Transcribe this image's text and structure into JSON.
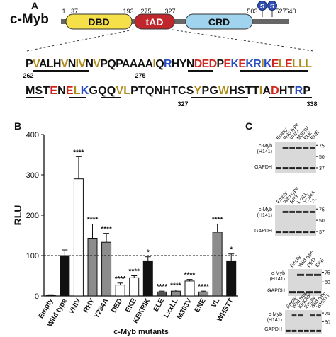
{
  "panel_a": {
    "label": "A",
    "protein": "c-Myb",
    "domains": [
      {
        "text": "DBD",
        "color": "#f5e04a"
      },
      {
        "text": "tAD",
        "color": "#c0272d"
      },
      {
        "text": "CRD",
        "color": "#9fd3ee"
      }
    ],
    "phospho": [
      "S",
      "S"
    ],
    "positions": [
      1,
      37,
      193,
      275,
      327,
      503,
      527,
      640
    ],
    "sequence": {
      "lines": [
        {
          "segments": [
            {
              "text": "P",
              "color": "#111111"
            },
            {
              "text": "V",
              "color": "#b08d1a"
            },
            {
              "text": "AL",
              "color": "#111111"
            },
            {
              "text": "H",
              "color": "#111111"
            },
            {
              "text": "V",
              "color": "#b08d1a"
            },
            {
              "text": "N",
              "color": "#111111"
            },
            {
              "text": "IV",
              "color": "#b08d1a"
            },
            {
              "text": "N",
              "color": "#111111"
            },
            {
              "text": "V",
              "color": "#b08d1a"
            },
            {
              "text": "PQPAAAA",
              "color": "#111111"
            },
            {
              "text": "I",
              "color": "#b08d1a"
            },
            {
              "text": "Q",
              "color": "#111111"
            },
            {
              "text": "R",
              "color": "#2a4fc2"
            },
            {
              "text": "HYN",
              "color": "#111111"
            },
            {
              "text": "DED",
              "color": "#d0261e"
            },
            {
              "text": "P",
              "color": "#111111"
            },
            {
              "text": "E",
              "color": "#d0261e"
            },
            {
              "text": "K",
              "color": "#2a4fc2"
            },
            {
              "text": "E",
              "color": "#d0261e"
            },
            {
              "text": "KR",
              "color": "#2a4fc2"
            },
            {
              "text": "I",
              "color": "#b08d1a"
            },
            {
              "text": "K",
              "color": "#2a4fc2"
            },
            {
              "text": "E",
              "color": "#d0261e"
            },
            {
              "text": "L",
              "color": "#b08d1a"
            },
            {
              "text": "E",
              "color": "#d0261e"
            },
            {
              "text": "LLL",
              "color": "#b08d1a"
            }
          ],
          "numbers": [
            262,
            275
          ]
        },
        {
          "segments": [
            {
              "text": "MST",
              "color": "#111111"
            },
            {
              "text": "E",
              "color": "#d0261e"
            },
            {
              "text": "N",
              "color": "#111111"
            },
            {
              "text": "E",
              "color": "#d0261e"
            },
            {
              "text": "L",
              "color": "#b08d1a"
            },
            {
              "text": "K",
              "color": "#2a4fc2"
            },
            {
              "text": "GQQ",
              "color": "#111111"
            },
            {
              "text": "VL",
              "color": "#b08d1a"
            },
            {
              "text": "PTQNHTCS",
              "color": "#111111"
            },
            {
              "text": "Y",
              "color": "#b08d1a"
            },
            {
              "text": "PG",
              "color": "#111111"
            },
            {
              "text": "W",
              "color": "#b08d1a"
            },
            {
              "text": "HSTT",
              "color": "#111111"
            },
            {
              "text": "I",
              "color": "#b08d1a"
            },
            {
              "text": "A",
              "color": "#111111"
            },
            {
              "text": "D",
              "color": "#d0261e"
            },
            {
              "text": "HT",
              "color": "#111111"
            },
            {
              "text": "R",
              "color": "#2a4fc2"
            },
            {
              "text": "P",
              "color": "#111111"
            }
          ],
          "numbers": [
            327,
            338
          ]
        }
      ]
    }
  },
  "chart_data": {
    "type": "bar",
    "panel_label": "B",
    "y_label": "RLU",
    "x_label": "c-Myb mutants",
    "categories": [
      "Empty",
      "Wild type",
      "VNIV",
      "RHY",
      "Y284A",
      "DED",
      "EKE",
      "KEKRIK",
      "ELE",
      "LxxLL",
      "M303V",
      "ENE",
      "VL",
      "WHSTT"
    ],
    "values": [
      2,
      100,
      290,
      143,
      133,
      27,
      45,
      87,
      10,
      12,
      37,
      10,
      158,
      87
    ],
    "errors": [
      1,
      14,
      55,
      35,
      22,
      5,
      5,
      10,
      2,
      3,
      4,
      2,
      20,
      17
    ],
    "significance": [
      null,
      null,
      "****",
      "****",
      "****",
      "****",
      "****",
      "*",
      "****",
      "****",
      "****",
      "****",
      "****",
      "*"
    ],
    "colors": [
      "#111111",
      "#111111",
      "#ffffff",
      "#8c8c8c",
      "#8c8c8c",
      "#ffffff",
      "#ffffff",
      "#111111",
      "#555555",
      "#8c8c8c",
      "#ffffff",
      "#8c8c8c",
      "#8c8c8c",
      "#111111"
    ],
    "ylim": [
      0,
      400
    ],
    "yticks": [
      0,
      100,
      200,
      300,
      400
    ],
    "reference_line": 100
  },
  "panel_c": {
    "label": "C",
    "blots": [
      {
        "lanes": [
          "Empty",
          "Wild type",
          "VNIV",
          "M303V",
          "ELE",
          "ENE"
        ],
        "target": [
          "c-Myb",
          "(H141)"
        ],
        "loading": "GAPDH",
        "markers": [
          75,
          50,
          37
        ]
      },
      {
        "lanes": [
          "Empty",
          "Wild type",
          "RHY",
          "LxxLL",
          "Y284A",
          "VL"
        ],
        "target": [
          "c-Myb",
          "(H141)"
        ],
        "loading": "GAPDH",
        "markers": [
          75,
          50,
          37
        ]
      },
      {
        "lanes": [
          "Empty",
          "Wild type",
          "DED",
          "EKE"
        ],
        "target": [
          "c-Myb",
          "(H141)"
        ],
        "loading": "GAPDH",
        "markers": [
          75,
          50
        ]
      },
      {
        "lanes": [
          "Empty",
          "Wild type",
          "KEKRIK",
          "Empty",
          "Wild type",
          "WHSTT"
        ],
        "target": [
          "c-Myb",
          "(H141)"
        ],
        "loading": "GAPDH",
        "markers": [
          75,
          50
        ]
      }
    ]
  }
}
